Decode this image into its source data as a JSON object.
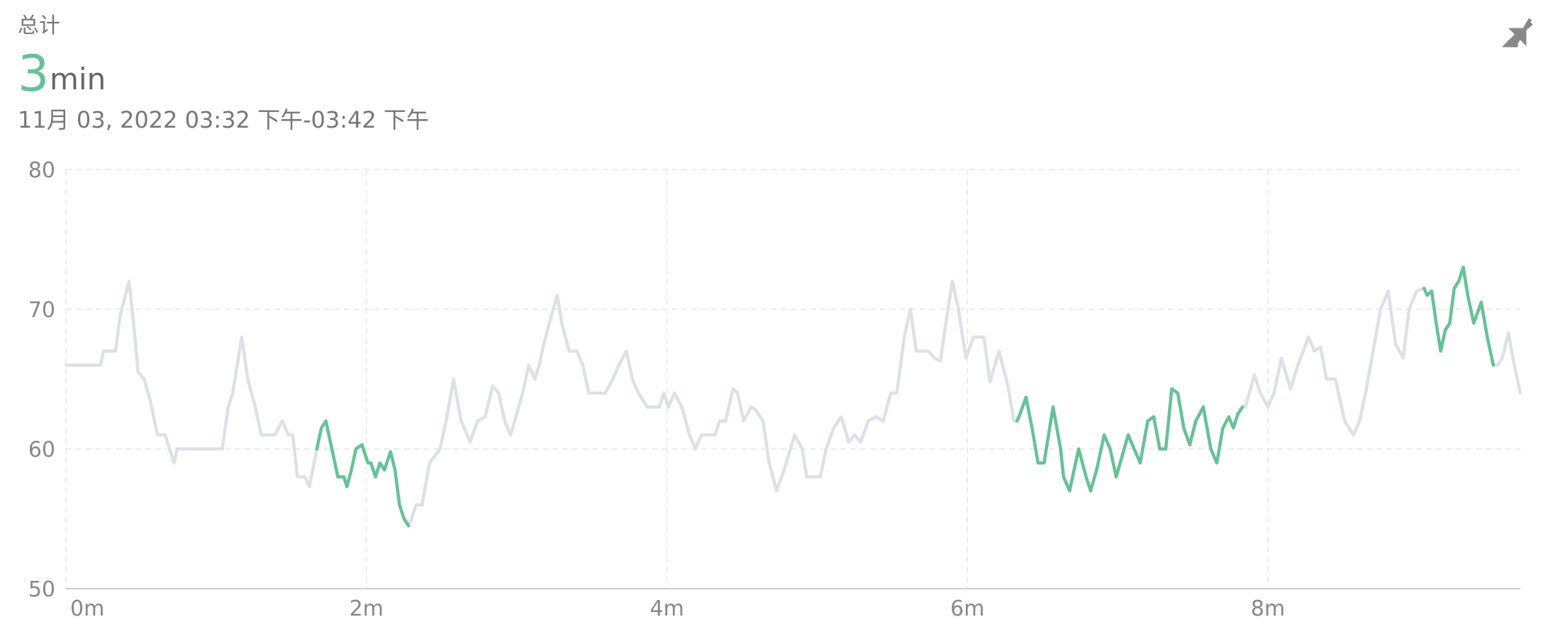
{
  "header": {
    "label": "总计",
    "value": "3",
    "unit": "min",
    "range": "11月 03, 2022 03:32 下午-03:42 下午"
  },
  "chart_data": {
    "type": "line",
    "x": [
      0,
      0.23,
      0.25,
      0.33,
      0.36,
      0.42,
      0.45,
      0.48,
      0.52,
      0.56,
      0.61,
      0.66,
      0.72,
      0.74,
      1.04,
      1.08,
      1.11,
      1.17,
      1.21,
      1.26,
      1.3,
      1.39,
      1.44,
      1.48,
      1.51,
      1.54,
      1.59,
      1.62,
      1.67,
      1.7,
      1.73,
      1.77,
      1.81,
      1.85,
      1.87,
      1.9,
      1.93,
      1.97,
      2.01,
      2.03,
      2.06,
      2.09,
      2.12,
      2.16,
      2.19,
      2.22,
      2.25,
      2.28,
      2.3,
      2.33,
      2.37,
      2.42,
      2.49,
      2.53,
      2.58,
      2.63,
      2.69,
      2.74,
      2.79,
      2.84,
      2.88,
      2.92,
      2.96,
      3.0,
      3.04,
      3.08,
      3.12,
      3.15,
      3.18,
      3.23,
      3.27,
      3.3,
      3.35,
      3.4,
      3.44,
      3.48,
      3.59,
      3.64,
      3.68,
      3.73,
      3.77,
      3.81,
      3.87,
      3.95,
      3.98,
      4.01,
      4.05,
      4.1,
      4.15,
      4.19,
      4.23,
      4.32,
      4.35,
      4.39,
      4.44,
      4.47,
      4.51,
      4.56,
      4.59,
      4.64,
      4.68,
      4.73,
      4.78,
      4.85,
      4.9,
      4.93,
      5.02,
      5.06,
      5.11,
      5.16,
      5.21,
      5.25,
      5.29,
      5.34,
      5.39,
      5.44,
      5.49,
      5.53,
      5.58,
      5.62,
      5.66,
      5.74,
      5.78,
      5.82,
      5.87,
      5.9,
      5.94,
      5.99,
      6.04,
      6.11,
      6.15,
      6.21,
      6.27,
      6.31,
      6.33,
      6.35,
      6.39,
      6.43,
      6.47,
      6.51,
      6.57,
      6.62,
      6.64,
      6.68,
      6.74,
      6.79,
      6.82,
      6.86,
      6.91,
      6.95,
      6.99,
      7.03,
      7.07,
      7.11,
      7.15,
      7.2,
      7.24,
      7.28,
      7.32,
      7.36,
      7.4,
      7.44,
      7.48,
      7.52,
      7.57,
      7.62,
      7.66,
      7.7,
      7.74,
      7.77,
      7.8,
      7.83,
      7.85,
      7.91,
      7.95,
      8.0,
      8.04,
      8.09,
      8.15,
      8.2,
      8.27,
      8.31,
      8.35,
      8.39,
      8.45,
      8.51,
      8.57,
      8.61,
      8.65,
      8.7,
      8.75,
      8.8,
      8.85,
      8.9,
      8.94,
      8.99,
      9.04,
      9.06,
      9.09,
      9.12,
      9.15,
      9.18,
      9.21,
      9.24,
      9.27,
      9.3,
      9.33,
      9.37,
      9.42,
      9.46,
      9.5,
      9.53,
      9.56,
      9.6,
      9.64,
      9.68
    ],
    "series": [
      {
        "color": "#dde0e8",
        "values": [
          66,
          66,
          67,
          67,
          69.5,
          72,
          69,
          65.5,
          65,
          63.5,
          61,
          61,
          59,
          60,
          60,
          63,
          64,
          68,
          65,
          63,
          61,
          61,
          62,
          61,
          61,
          58,
          58,
          57.3,
          60,
          61.5,
          62,
          60,
          58,
          58,
          57.3,
          58.5,
          60,
          60.3,
          59,
          59,
          58,
          59,
          58.5,
          59.8,
          58.5,
          56,
          55,
          54.5,
          55,
          56,
          56,
          59,
          60,
          62,
          65,
          62,
          60.5,
          62,
          62.3,
          64.5,
          64,
          62,
          61,
          62.5,
          64,
          66,
          65,
          66,
          67.5,
          69.5,
          71,
          69,
          67,
          67,
          66,
          64,
          64,
          65,
          66,
          67,
          65,
          64,
          63,
          63,
          64,
          63,
          64,
          63,
          61,
          60,
          61,
          61,
          62,
          62,
          64.3,
          64,
          62,
          63,
          62.8,
          62,
          59,
          57,
          58.5,
          61,
          60,
          58,
          58,
          60,
          61.5,
          62.3,
          60.5,
          61,
          60.5,
          62,
          62.3,
          62,
          64,
          64,
          68,
          70,
          67,
          67,
          66.5,
          66.3,
          70,
          72,
          70,
          66.5,
          68,
          68,
          64.8,
          67,
          64.5,
          62,
          62,
          62.5,
          63.7,
          61.5,
          59,
          59,
          63,
          60,
          58,
          57,
          60,
          58,
          57,
          58.5,
          61,
          60,
          58,
          59.5,
          61,
          60,
          59,
          62,
          62.3,
          60,
          60,
          64.3,
          64,
          61.5,
          60.3,
          62,
          63,
          60,
          59,
          61.5,
          62.3,
          61.5,
          62.5,
          63,
          63,
          65.3,
          64,
          63,
          64,
          66.5,
          64.3,
          66,
          68,
          67,
          67.3,
          65,
          65,
          62,
          61,
          62,
          64,
          67,
          70,
          71.3,
          67.5,
          66.5,
          70,
          71.3,
          71.5,
          71,
          71.3,
          69,
          67,
          68.5,
          69,
          71.5,
          72,
          73,
          71,
          69,
          70.5,
          68,
          66,
          66,
          66.5,
          68.3,
          66,
          64
        ]
      },
      {
        "color": "#66c295",
        "values": [
          null,
          null,
          null,
          null,
          null,
          null,
          null,
          null,
          null,
          null,
          null,
          null,
          null,
          null,
          null,
          null,
          null,
          null,
          null,
          null,
          null,
          null,
          null,
          null,
          null,
          null,
          null,
          null,
          60,
          61.5,
          62,
          60,
          58,
          58,
          57.3,
          58.5,
          60,
          60.3,
          59,
          59,
          58,
          59,
          58.5,
          59.8,
          58.5,
          56,
          55,
          54.5,
          null,
          null,
          null,
          null,
          null,
          null,
          null,
          null,
          null,
          null,
          null,
          null,
          null,
          null,
          null,
          null,
          null,
          null,
          null,
          null,
          null,
          null,
          null,
          null,
          null,
          null,
          null,
          null,
          null,
          null,
          null,
          null,
          null,
          null,
          null,
          null,
          null,
          null,
          null,
          null,
          null,
          null,
          null,
          null,
          null,
          null,
          null,
          null,
          null,
          null,
          null,
          null,
          null,
          null,
          null,
          null,
          null,
          null,
          null,
          null,
          null,
          null,
          null,
          null,
          null,
          null,
          null,
          null,
          null,
          null,
          null,
          null,
          null,
          null,
          null,
          null,
          null,
          null,
          null,
          null,
          null,
          null,
          null,
          null,
          null,
          null,
          62,
          62.5,
          63.7,
          61.5,
          59,
          59,
          63,
          60,
          58,
          57,
          60,
          58,
          57,
          58.5,
          61,
          60,
          58,
          59.5,
          61,
          60,
          59,
          62,
          62.3,
          60,
          60,
          64.3,
          64,
          61.5,
          60.3,
          62,
          63,
          60,
          59,
          61.5,
          62.3,
          61.5,
          62.5,
          63,
          null,
          null,
          null,
          null,
          null,
          null,
          null,
          null,
          null,
          null,
          null,
          null,
          null,
          null,
          null,
          null,
          null,
          null,
          null,
          null,
          null,
          null,
          null,
          null,
          71.5,
          71,
          71.3,
          69,
          67,
          68.5,
          69,
          71.5,
          72,
          73,
          71,
          69,
          70.5,
          68,
          66,
          null,
          null,
          null,
          null,
          null
        ]
      }
    ],
    "xlim": [
      0,
      9.68
    ],
    "xticks": [
      {
        "value": 0,
        "label": "0m"
      },
      {
        "value": 2,
        "label": "2m"
      },
      {
        "value": 4,
        "label": "4m"
      },
      {
        "value": 6,
        "label": "6m"
      },
      {
        "value": 8,
        "label": "8m"
      }
    ],
    "ylim": [
      50,
      80
    ],
    "yticks": [
      50,
      60,
      70,
      80
    ],
    "grid": true
  }
}
